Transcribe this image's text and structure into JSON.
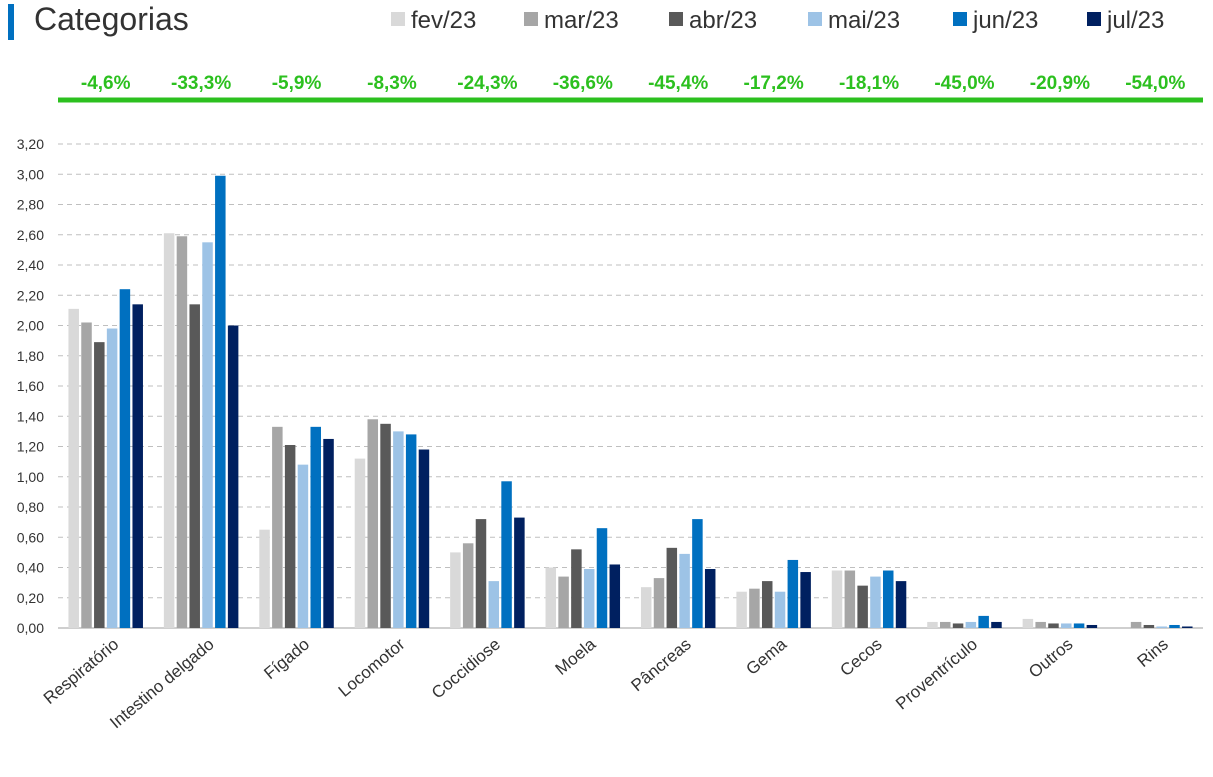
{
  "chart_data": {
    "type": "bar",
    "title": "Categorias",
    "categories": [
      "Respiratório",
      "Intestino delgado",
      "Fígado",
      "Locomotor",
      "Coccidiose",
      "Moela",
      "Pâncreas",
      "Gema",
      "Cecos",
      "Proventrículo",
      "Outros",
      "Rins"
    ],
    "series": [
      {
        "name": "fev/23",
        "values": [
          2.11,
          2.61,
          0.65,
          1.12,
          0.5,
          0.4,
          0.27,
          0.24,
          0.38,
          0.04,
          0.06,
          0.0
        ]
      },
      {
        "name": "mar/23",
        "values": [
          2.02,
          2.59,
          1.33,
          1.38,
          0.56,
          0.34,
          0.33,
          0.26,
          0.38,
          0.04,
          0.04,
          0.04
        ]
      },
      {
        "name": "abr/23",
        "values": [
          1.89,
          2.14,
          1.21,
          1.35,
          0.72,
          0.52,
          0.53,
          0.31,
          0.28,
          0.03,
          0.03,
          0.02
        ]
      },
      {
        "name": "mai/23",
        "values": [
          1.98,
          2.55,
          1.08,
          1.3,
          0.31,
          0.39,
          0.49,
          0.24,
          0.34,
          0.04,
          0.03,
          0.01
        ]
      },
      {
        "name": "jun/23",
        "values": [
          2.24,
          2.99,
          1.33,
          1.28,
          0.97,
          0.66,
          0.72,
          0.45,
          0.38,
          0.08,
          0.03,
          0.02
        ]
      },
      {
        "name": "jul/23",
        "values": [
          2.14,
          2.0,
          1.25,
          1.18,
          0.73,
          0.42,
          0.39,
          0.37,
          0.31,
          0.04,
          0.02,
          0.01
        ]
      }
    ],
    "variation_labels": [
      "-4,6%",
      "-33,3%",
      "-5,9%",
      "-8,3%",
      "-24,3%",
      "-36,6%",
      "-45,4%",
      "-17,2%",
      "-18,1%",
      "-45,0%",
      "-20,9%",
      "-54,0%"
    ],
    "ylim": [
      0,
      3.2
    ],
    "y_ticks": [
      "0,00",
      "0,20",
      "0,40",
      "0,60",
      "0,80",
      "1,00",
      "1,20",
      "1,40",
      "1,60",
      "1,80",
      "2,00",
      "2,20",
      "2,40",
      "2,60",
      "2,80",
      "3,00",
      "3,20"
    ],
    "xlabel": "",
    "ylabel": "",
    "grid": true,
    "legend_position": "top-right",
    "colors": {
      "series": [
        "#d9d9d9",
        "#a6a6a6",
        "#595959",
        "#9dc3e6",
        "#0070c0",
        "#002060"
      ],
      "title_accent": "#0070c0",
      "variation_text": "#2cc01f",
      "variation_line": "#2cc01f",
      "grid": "#bfbfbf",
      "axis": "#bfbfbf",
      "text": "#333333"
    }
  }
}
